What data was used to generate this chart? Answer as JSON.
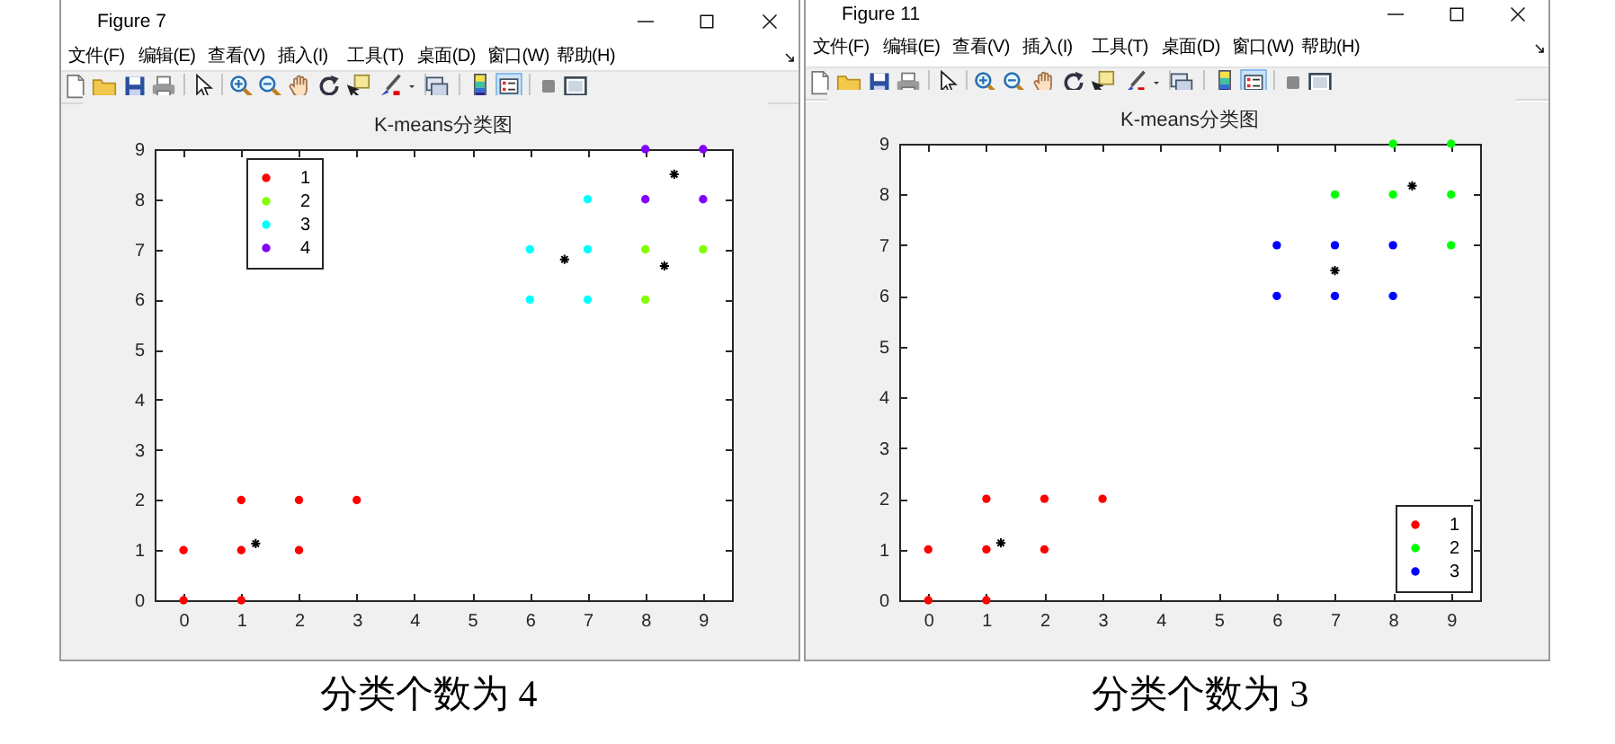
{
  "chart_data": [
    {
      "type": "scatter",
      "title": "K-means分类图",
      "series": [
        {
          "name": "1",
          "color": "#ff0000",
          "marker": "circle",
          "x": [
            0,
            0,
            1,
            1,
            1,
            2,
            2,
            3
          ],
          "values": [
            0,
            1,
            0,
            1,
            2,
            1,
            2,
            2
          ]
        },
        {
          "name": "2",
          "color": "#80ff00",
          "marker": "circle",
          "x": [
            8,
            8,
            9
          ],
          "values": [
            6,
            7,
            7
          ]
        },
        {
          "name": "3",
          "color": "#00ffff",
          "marker": "circle",
          "x": [
            6,
            6,
            7,
            7,
            7
          ],
          "values": [
            6,
            7,
            6,
            7,
            8
          ]
        },
        {
          "name": "4",
          "color": "#8000ff",
          "marker": "circle",
          "x": [
            8,
            8,
            9,
            9
          ],
          "values": [
            8,
            9,
            8,
            9
          ]
        },
        {
          "color": "#000000",
          "marker": "cross",
          "x": [
            1.25,
            8.33,
            6.6,
            8.5
          ],
          "values": [
            1.13,
            6.67,
            6.8,
            8.5
          ]
        }
      ],
      "xlim": [
        -0.5,
        9.5
      ],
      "xticks": [
        0,
        1,
        2,
        3,
        4,
        5,
        6,
        7,
        8,
        9
      ],
      "ylim": [
        0,
        9
      ],
      "yticks": [
        0,
        1,
        2,
        3,
        4,
        5,
        6,
        7,
        8,
        9
      ],
      "grid": false,
      "legend": "top left",
      "annotations": [
        "Figure 7",
        "文件(F)",
        "编辑(E)",
        "查看(V)",
        "插入(I)",
        "工具(T)",
        "桌面(D)",
        "窗口(W)",
        "帮助(H)",
        "分类个数为 4"
      ]
    },
    {
      "type": "scatter",
      "title": "K-means分类图",
      "series": [
        {
          "name": "1",
          "color": "#ff0000",
          "marker": "circle",
          "x": [
            0,
            0,
            1,
            1,
            1,
            2,
            2,
            3
          ],
          "values": [
            0,
            1,
            0,
            1,
            2,
            1,
            2,
            2
          ]
        },
        {
          "name": "2",
          "color": "#00ff00",
          "marker": "circle",
          "x": [
            7,
            8,
            8,
            9,
            9,
            9
          ],
          "values": [
            8,
            8,
            9,
            7,
            8,
            9
          ]
        },
        {
          "name": "3",
          "color": "#0000ff",
          "marker": "circle",
          "x": [
            6,
            6,
            7,
            7,
            8,
            8
          ],
          "values": [
            6,
            7,
            6,
            7,
            6,
            7
          ]
        },
        {
          "color": "#000000",
          "marker": "cross",
          "x": [
            1.25,
            8.33,
            7
          ],
          "values": [
            1.13,
            8.17,
            6.5
          ]
        }
      ],
      "xlim": [
        -0.5,
        9.5
      ],
      "xticks": [
        0,
        1,
        2,
        3,
        4,
        5,
        6,
        7,
        8,
        9
      ],
      "ylim": [
        0,
        9
      ],
      "yticks": [
        0,
        1,
        2,
        3,
        4,
        5,
        6,
        7,
        8,
        9
      ],
      "grid": false,
      "legend": "bottom right",
      "annotations": [
        "Figure 11",
        "文件(F)",
        "编辑(E)",
        "查看(V)",
        "插入(I)",
        "工具(T)",
        "桌面(D)",
        "窗口(W)",
        "帮助(H)",
        "分类个数为 3"
      ]
    }
  ]
}
